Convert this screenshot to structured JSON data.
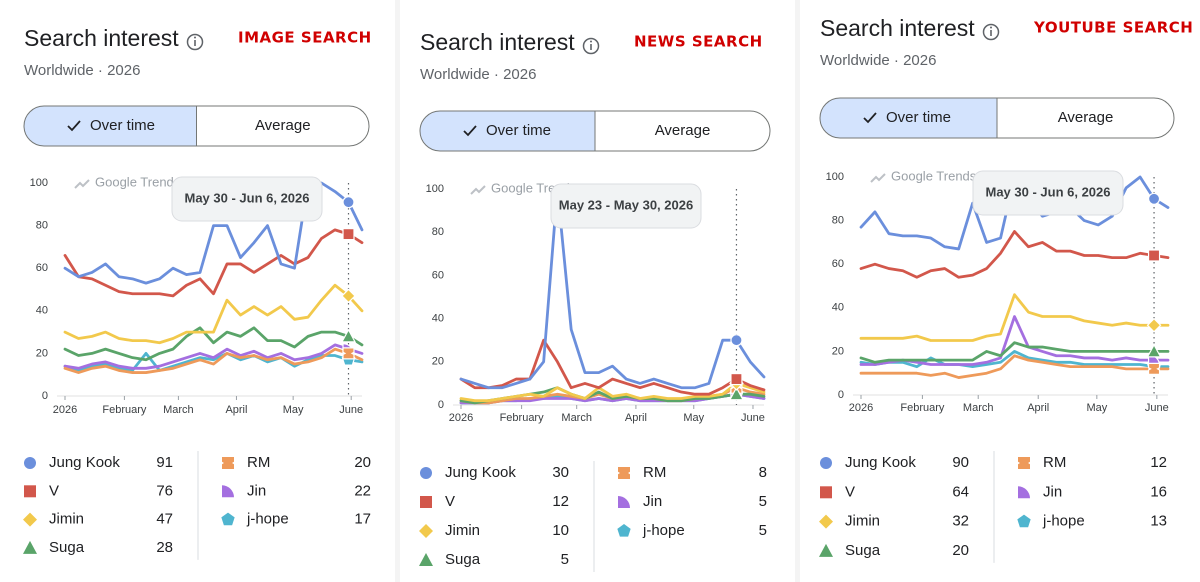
{
  "chart_data": [
    {
      "type": "line",
      "title": "Search interest",
      "label": "IMAGE SEARCH",
      "subtitle": "Worldwide · 2026",
      "tabs": [
        "Over time",
        "Average"
      ],
      "watermark": "Google Trends",
      "tooltip": {
        "label": "May 30 - Jun 6, 2026",
        "x": 21
      },
      "xlim": [
        0,
        22
      ],
      "xticks": [
        {
          "value": 0,
          "label": "2026"
        },
        {
          "value": 4.4,
          "label": "February"
        },
        {
          "value": 8.4,
          "label": "March"
        },
        {
          "value": 12.7,
          "label": "April"
        },
        {
          "value": 16.9,
          "label": "May"
        },
        {
          "value": 21.2,
          "label": "June"
        }
      ],
      "ylim": [
        0,
        100
      ],
      "yticks": [
        0,
        20,
        40,
        60,
        80,
        100
      ],
      "series": [
        {
          "name": "Jung Kook",
          "color": "#6b8fdc",
          "marker": "circle",
          "values": [
            60,
            56,
            58,
            62,
            56,
            55,
            53,
            55,
            60,
            57,
            58,
            80,
            80,
            65,
            72,
            80,
            62,
            60,
            100,
            100,
            96,
            91,
            78
          ]
        },
        {
          "name": "V",
          "color": "#d2574b",
          "marker": "square",
          "values": [
            66,
            56,
            55,
            52,
            49,
            48,
            48,
            48,
            47,
            52,
            55,
            48,
            62,
            62,
            58,
            62,
            66,
            62,
            65,
            74,
            78,
            76,
            72
          ]
        },
        {
          "name": "Jimin",
          "color": "#f2c94c",
          "marker": "diamond",
          "values": [
            30,
            27,
            28,
            30,
            27,
            26,
            26,
            25,
            27,
            30,
            30,
            30,
            45,
            38,
            42,
            38,
            42,
            36,
            37,
            45,
            52,
            47,
            40
          ]
        },
        {
          "name": "Suga",
          "color": "#5aa469",
          "marker": "triangle",
          "values": [
            22,
            19,
            20,
            22,
            20,
            18,
            17,
            20,
            22,
            28,
            32,
            25,
            30,
            28,
            32,
            26,
            26,
            23,
            28,
            30,
            30,
            28,
            24
          ]
        },
        {
          "name": "RM",
          "color": "#ee9a5a",
          "marker": "spool",
          "values": [
            13,
            11,
            13,
            14,
            12,
            11,
            11,
            12,
            13,
            15,
            17,
            15,
            20,
            18,
            19,
            17,
            18,
            15,
            16,
            18,
            22,
            20,
            17
          ]
        },
        {
          "name": "Jin",
          "color": "#a46fe0",
          "marker": "leaf",
          "values": [
            14,
            13,
            15,
            16,
            14,
            13,
            13,
            14,
            16,
            18,
            20,
            18,
            22,
            19,
            21,
            18,
            20,
            17,
            18,
            20,
            24,
            22,
            20
          ]
        },
        {
          "name": "j-hope",
          "color": "#4fb5cf",
          "marker": "pentagon",
          "values": [
            14,
            12,
            14,
            15,
            13,
            12,
            20,
            12,
            14,
            16,
            18,
            17,
            20,
            17,
            19,
            16,
            18,
            14,
            17,
            19,
            19,
            17,
            16
          ]
        }
      ]
    },
    {
      "type": "line",
      "title": "Search interest",
      "label": "NEWS SEARCH",
      "subtitle": "Worldwide · 2026",
      "tabs": [
        "Over time",
        "Average"
      ],
      "watermark": "Google Trends",
      "tooltip": {
        "label": "May 23 - May 30, 2026",
        "x": 20
      },
      "xlim": [
        0,
        22
      ],
      "xticks": [
        {
          "value": 0,
          "label": "2026"
        },
        {
          "value": 4.4,
          "label": "February"
        },
        {
          "value": 8.4,
          "label": "March"
        },
        {
          "value": 12.7,
          "label": "April"
        },
        {
          "value": 16.9,
          "label": "May"
        },
        {
          "value": 21.2,
          "label": "June"
        }
      ],
      "ylim": [
        0,
        100
      ],
      "yticks": [
        0,
        20,
        40,
        60,
        80,
        100
      ],
      "series": [
        {
          "name": "Jung Kook",
          "color": "#6b8fdc",
          "marker": "circle",
          "values": [
            12,
            10,
            8,
            8,
            10,
            12,
            20,
            100,
            35,
            15,
            15,
            18,
            12,
            10,
            12,
            10,
            8,
            8,
            10,
            30,
            30,
            20,
            13
          ]
        },
        {
          "name": "V",
          "color": "#d2574b",
          "marker": "square",
          "values": [
            12,
            8,
            8,
            9,
            12,
            12,
            30,
            20,
            8,
            10,
            8,
            12,
            10,
            8,
            10,
            8,
            6,
            5,
            5,
            8,
            12,
            9,
            7
          ]
        },
        {
          "name": "Jimin",
          "color": "#f2c94c",
          "marker": "diamond",
          "values": [
            3,
            2,
            2,
            3,
            4,
            5,
            4,
            8,
            5,
            3,
            8,
            4,
            5,
            3,
            4,
            3,
            3,
            4,
            4,
            5,
            10,
            8,
            6
          ]
        },
        {
          "name": "Suga",
          "color": "#5aa469",
          "marker": "triangle",
          "values": [
            2,
            1,
            2,
            3,
            4,
            5,
            6,
            8,
            5,
            3,
            6,
            3,
            4,
            3,
            3,
            2,
            2,
            3,
            3,
            4,
            5,
            5,
            4
          ]
        },
        {
          "name": "RM",
          "color": "#ee9a5a",
          "marker": "spool",
          "values": [
            2,
            1,
            1,
            2,
            3,
            3,
            4,
            5,
            4,
            3,
            5,
            3,
            4,
            3,
            3,
            2,
            2,
            3,
            4,
            5,
            8,
            6,
            5
          ]
        },
        {
          "name": "Jin",
          "color": "#a46fe0",
          "marker": "leaf",
          "values": [
            1,
            1,
            1,
            2,
            2,
            2,
            3,
            3,
            3,
            2,
            3,
            2,
            3,
            2,
            2,
            2,
            2,
            2,
            3,
            4,
            5,
            4,
            3
          ]
        },
        {
          "name": "j-hope",
          "color": "#4fb5cf",
          "marker": "pentagon",
          "values": [
            1,
            1,
            1,
            2,
            2,
            3,
            3,
            4,
            3,
            2,
            3,
            2,
            3,
            2,
            2,
            2,
            2,
            2,
            3,
            4,
            5,
            4,
            3
          ]
        }
      ]
    },
    {
      "type": "line",
      "title": "Search interest",
      "label": "YOUTUBE SEARCH",
      "subtitle": "Worldwide · 2026",
      "tabs": [
        "Over time",
        "Average"
      ],
      "watermark": "Google Trends",
      "tooltip": {
        "label": "May 30 - Jun 6, 2026",
        "x": 21
      },
      "xlim": [
        0,
        22
      ],
      "xticks": [
        {
          "value": 0,
          "label": "2026"
        },
        {
          "value": 4.4,
          "label": "February"
        },
        {
          "value": 8.4,
          "label": "March"
        },
        {
          "value": 12.7,
          "label": "April"
        },
        {
          "value": 16.9,
          "label": "May"
        },
        {
          "value": 21.2,
          "label": "June"
        }
      ],
      "ylim": [
        0,
        100
      ],
      "yticks": [
        0,
        20,
        40,
        60,
        80,
        100
      ],
      "series": [
        {
          "name": "Jung Kook",
          "color": "#6b8fdc",
          "marker": "circle",
          "values": [
            77,
            84,
            74,
            73,
            73,
            72,
            68,
            67,
            88,
            70,
            72,
            100,
            90,
            82,
            84,
            86,
            80,
            78,
            82,
            95,
            100,
            90,
            86
          ]
        },
        {
          "name": "V",
          "color": "#d2574b",
          "marker": "square",
          "values": [
            58,
            60,
            58,
            57,
            54,
            57,
            58,
            54,
            55,
            58,
            65,
            75,
            68,
            70,
            66,
            66,
            64,
            64,
            63,
            63,
            65,
            64,
            63
          ]
        },
        {
          "name": "Jimin",
          "color": "#f2c94c",
          "marker": "diamond",
          "values": [
            26,
            26,
            26,
            26,
            27,
            25,
            25,
            25,
            25,
            27,
            28,
            46,
            38,
            36,
            36,
            36,
            34,
            33,
            32,
            33,
            32,
            32,
            32
          ]
        },
        {
          "name": "Suga",
          "color": "#5aa469",
          "marker": "triangle",
          "values": [
            17,
            15,
            16,
            16,
            16,
            16,
            16,
            16,
            16,
            20,
            18,
            24,
            22,
            22,
            21,
            20,
            20,
            20,
            20,
            20,
            20,
            20,
            20
          ]
        },
        {
          "name": "RM",
          "color": "#ee9a5a",
          "marker": "spool",
          "values": [
            10,
            10,
            10,
            10,
            10,
            9,
            10,
            8,
            9,
            10,
            12,
            18,
            16,
            15,
            14,
            13,
            13,
            13,
            13,
            12,
            12,
            12,
            12
          ]
        },
        {
          "name": "Jin",
          "color": "#a46fe0",
          "marker": "leaf",
          "values": [
            14,
            14,
            15,
            16,
            15,
            14,
            14,
            14,
            14,
            15,
            17,
            36,
            22,
            20,
            18,
            18,
            17,
            17,
            16,
            17,
            16,
            16,
            16
          ]
        },
        {
          "name": "j-hope",
          "color": "#4fb5cf",
          "marker": "pentagon",
          "values": [
            15,
            14,
            15,
            15,
            13,
            17,
            14,
            14,
            13,
            14,
            15,
            20,
            17,
            16,
            15,
            15,
            14,
            14,
            14,
            14,
            14,
            13,
            13
          ]
        }
      ]
    }
  ]
}
